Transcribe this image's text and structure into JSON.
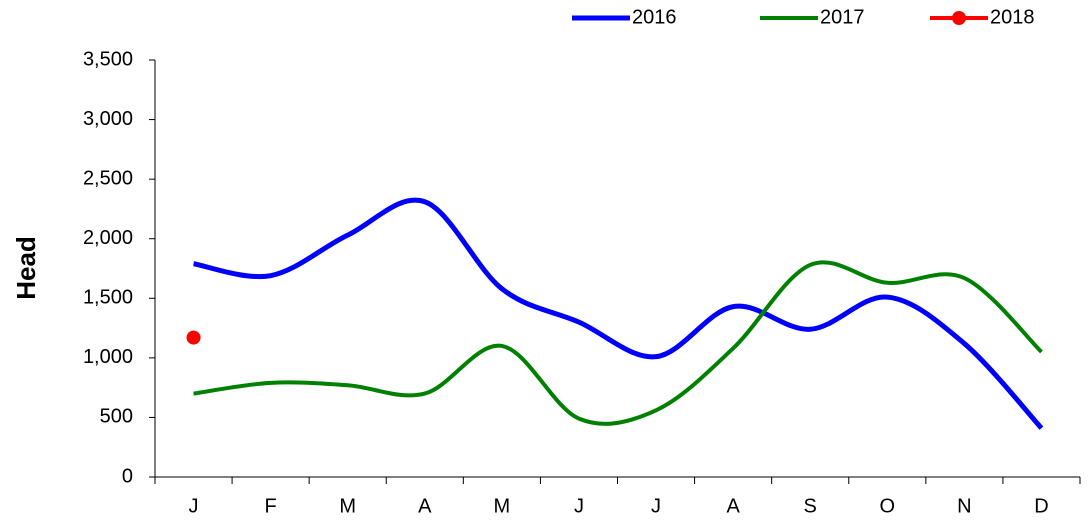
{
  "chart_data": {
    "type": "line",
    "y_label": "Head",
    "categories": [
      "J",
      "F",
      "M",
      "A",
      "M",
      "J",
      "J",
      "A",
      "S",
      "O",
      "N",
      "D"
    ],
    "series": [
      {
        "name": "2016",
        "color": "#0000ff",
        "values": [
          1790,
          1690,
          2030,
          2310,
          1580,
          1300,
          1010,
          1430,
          1240,
          1510,
          1120,
          410
        ]
      },
      {
        "name": "2017",
        "color": "#008000",
        "values": [
          700,
          790,
          770,
          700,
          1100,
          490,
          560,
          1080,
          1780,
          1630,
          1670,
          1050
        ]
      },
      {
        "name": "2018",
        "color": "#ff0000",
        "marker": true,
        "values": [
          1170,
          null,
          null,
          null,
          null,
          null,
          null,
          null,
          null,
          null,
          null,
          null
        ]
      }
    ],
    "ylim": [
      0,
      3500
    ],
    "yticks": [
      0,
      500,
      {
        "value": 1000,
        "label": "1,000"
      },
      {
        "value": 1500,
        "label": "1,500"
      },
      {
        "value": 2000,
        "label": "2,000"
      },
      {
        "value": 2500,
        "label": "2,500"
      },
      {
        "value": 3000,
        "label": "3,000"
      },
      {
        "value": 3500,
        "label": "3,500"
      }
    ],
    "smooth": true,
    "legend": "top-right"
  }
}
